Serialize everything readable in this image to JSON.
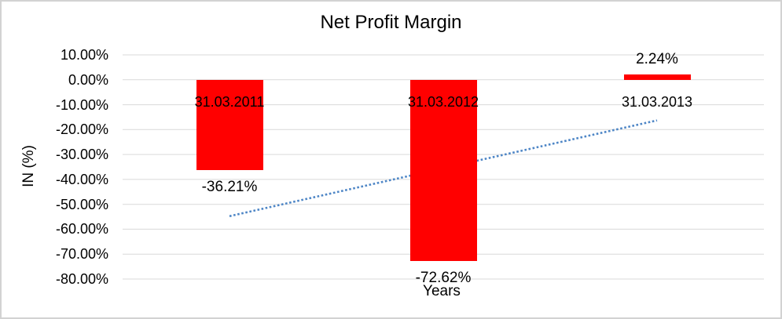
{
  "chart_data": {
    "type": "bar",
    "title": "Net Profit Margin",
    "xlabel": "Years",
    "ylabel": "IN (%)",
    "categories": [
      "31.03.2011",
      "31.03.2012",
      "31.03.2013"
    ],
    "values": [
      -36.21,
      -72.62,
      2.24
    ],
    "value_labels": [
      "-36.21%",
      "-72.62%",
      "2.24%"
    ],
    "yticks": [
      10,
      0,
      -10,
      -20,
      -30,
      -40,
      -50,
      -60,
      -70,
      -80
    ],
    "ytick_labels": [
      "10.00%",
      "0.00%",
      "-10.00%",
      "-20.00%",
      "-30.00%",
      "-40.00%",
      "-50.00%",
      "-60.00%",
      "-70.00%",
      "-80.00%"
    ],
    "ylim": [
      -80,
      10
    ],
    "grid": true,
    "legend": false,
    "bar_color": "#FF0000",
    "gridline_color": "#D9D9D9",
    "trendline": {
      "type": "linear",
      "style": "dotted",
      "color": "#4E86C6"
    }
  }
}
